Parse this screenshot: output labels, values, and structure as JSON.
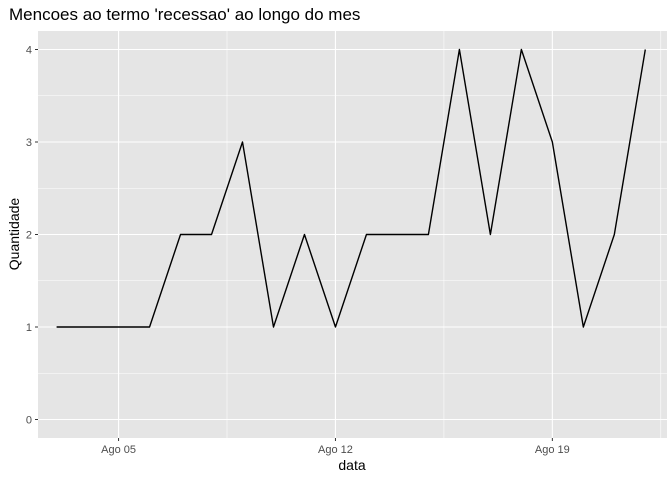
{
  "chart_data": {
    "type": "line",
    "title": "Mencoes ao termo 'recessao' ao longo do mes",
    "xlabel": "data",
    "ylabel": "Quantidade",
    "x": [
      "Ago 03",
      "Ago 04",
      "Ago 05",
      "Ago 06",
      "Ago 07",
      "Ago 08",
      "Ago 09",
      "Ago 10",
      "Ago 11",
      "Ago 12",
      "Ago 13",
      "Ago 14",
      "Ago 15",
      "Ago 16",
      "Ago 17",
      "Ago 18",
      "Ago 19",
      "Ago 20",
      "Ago 21",
      "Ago 22"
    ],
    "values": [
      1,
      1,
      1,
      1,
      2,
      2,
      3,
      1,
      2,
      1,
      2,
      2,
      2,
      4,
      2,
      4,
      3,
      1,
      2,
      4
    ],
    "x_ticks": [
      "Ago 05",
      "Ago 12",
      "Ago 19"
    ],
    "y_ticks": [
      "0",
      "1",
      "2",
      "3",
      "4"
    ],
    "xlim": [
      "Ago 02.4",
      "Ago 22.7"
    ],
    "ylim": [
      -0.2,
      4.2
    ],
    "grid": true,
    "colors": {
      "panel": "#e5e5e5",
      "grid": "#ffffff",
      "line": "#000000",
      "tick_text": "#4d4d4d"
    }
  }
}
